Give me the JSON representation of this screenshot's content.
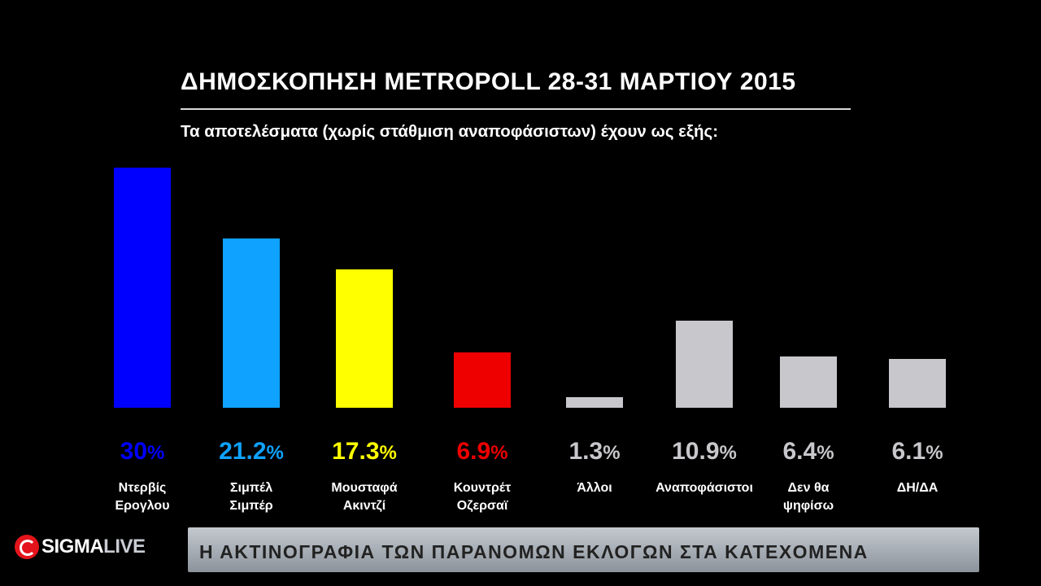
{
  "header": {
    "title": "ΔΗΜΟΣΚΟΠΗΣΗ METROPOLL 28-31 ΜΑΡΤΙΟΥ 2015",
    "subtitle": "Τα αποτελέσματα (χωρίς στάθμιση αναποφάσιστων) έχουν ως εξής:"
  },
  "chart_data": {
    "type": "bar",
    "categories": [
      "Ντερβίς\nΕρογλου",
      "Σιμπέλ\nΣιμπέρ",
      "Μουσταφά\nΑκιντζί",
      "Κουντρέτ\nΟζερσαϊ",
      "Άλλοι",
      "Αναποφάσιστοι",
      "Δεν θα\nψηφίσω",
      "ΔΗ/ΔΑ"
    ],
    "values": [
      30,
      21.2,
      17.3,
      6.9,
      1.3,
      10.9,
      6.4,
      6.1
    ],
    "value_labels": [
      "30",
      "21.2",
      "17.3",
      "6.9",
      "1.3",
      "10.9",
      "6.4",
      "6.1"
    ],
    "unit": "%",
    "colors": [
      "#0000ff",
      "#0fa2ff",
      "#ffff00",
      "#ee0000",
      "#c8c8cc",
      "#c8c8cc",
      "#c8c8cc",
      "#c8c8cc"
    ],
    "ylim": [
      0,
      30
    ],
    "title": "ΔΗΜΟΣΚΟΠΗΣΗ METROPOLL 28-31 ΜΑΡΤΙΟΥ 2015",
    "xlabel": "",
    "ylabel": "",
    "grid": false
  },
  "branding": {
    "logo_sigma": "SIGMA",
    "logo_live": "LIVE",
    "logo_icon": "sigmalive-logo-icon"
  },
  "ticker": {
    "text": "Η ΑΚΤΙΝΟΓΡΑΦΙΑ ΤΩΝ ΠΑΡΑΝΟΜΩΝ ΕΚΛΟΓΩΝ ΣΤΑ ΚΑΤΕΧΟΜΕΝΑ"
  }
}
